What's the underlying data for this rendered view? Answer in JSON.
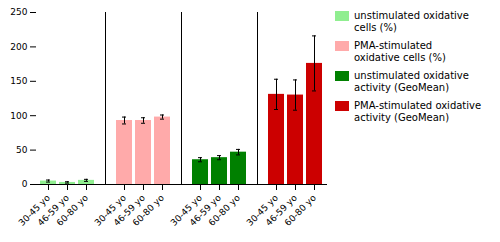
{
  "chart_data": {
    "type": "bar",
    "categories": [
      "30-45 yo",
      "46-59 yo",
      "60-80 yo"
    ],
    "series": [
      {
        "name": "unstimulated oxidative\ncells (%)",
        "color": "#90ee90",
        "values": [
          5,
          3,
          6
        ],
        "errors": [
          1.5,
          1.0,
          1.5
        ]
      },
      {
        "name": "PMA-stimulated\noxidative cells (%)",
        "color": "#ffaaaa",
        "values": [
          93,
          93,
          98
        ],
        "errors": [
          5,
          4,
          3
        ]
      },
      {
        "name": "unstimulated oxidative\nactivity (GeoMean)",
        "color": "#008000",
        "values": [
          36,
          39,
          47
        ],
        "errors": [
          3,
          3,
          4
        ]
      },
      {
        "name": "PMA-stimulated oxidative\nactivity (GeoMean)",
        "color": "#cc0000",
        "values": [
          131,
          130,
          176
        ],
        "errors": [
          22,
          22,
          40
        ]
      }
    ],
    "ylim": [
      0,
      250
    ],
    "yticks": [
      0,
      50,
      100,
      150,
      200,
      250
    ],
    "grid": false,
    "legend": "right"
  }
}
